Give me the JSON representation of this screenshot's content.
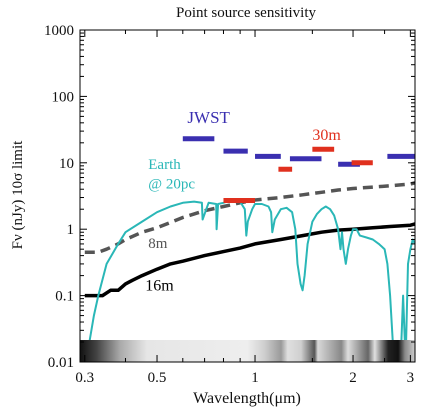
{
  "chart_data": {
    "type": "line",
    "title": "Point source sensitivity",
    "xlabel": "Wavelength(μm)",
    "ylabel": "Fν (nJy) 10σ limit",
    "xscale": "log",
    "yscale": "log",
    "xlim": [
      0.29,
      3.1
    ],
    "ylim": [
      0.01,
      1000
    ],
    "xticks": [
      0.3,
      0.5,
      1,
      2,
      3
    ],
    "xtick_labels": [
      "0.3",
      "0.5",
      "1",
      "2",
      "3"
    ],
    "yticks": [
      0.01,
      0.1,
      1,
      10,
      100,
      1000
    ],
    "ytick_labels": [
      "0.01",
      "0.1",
      "1",
      "10",
      "100",
      "1000"
    ],
    "grid": false,
    "bottom_band": "atmospheric transmission strip (grayscale)",
    "series": [
      {
        "name": "16m",
        "style": "solid",
        "color": "#000000",
        "x": [
          0.3,
          0.34,
          0.36,
          0.38,
          0.4,
          0.42,
          0.45,
          0.5,
          0.55,
          0.6,
          0.7,
          0.8,
          0.9,
          1.0,
          1.2,
          1.4,
          1.6,
          1.8,
          2.0,
          2.3,
          2.6,
          3.0,
          3.1
        ],
        "y": [
          0.1,
          0.1,
          0.12,
          0.12,
          0.15,
          0.17,
          0.2,
          0.25,
          0.3,
          0.33,
          0.4,
          0.46,
          0.52,
          0.6,
          0.7,
          0.8,
          0.9,
          0.97,
          1.0,
          1.05,
          1.1,
          1.15,
          1.2
        ]
      },
      {
        "name": "8m",
        "style": "dashed",
        "color": "#555555",
        "x": [
          0.3,
          0.33,
          0.35,
          0.38,
          0.4,
          0.45,
          0.5,
          0.6,
          0.7,
          0.8,
          0.9,
          1.0,
          1.2,
          1.4,
          1.6,
          1.8,
          2.0,
          2.3,
          2.6,
          3.0,
          3.1
        ],
        "y": [
          0.45,
          0.45,
          0.5,
          0.6,
          0.7,
          0.9,
          1.05,
          1.5,
          1.9,
          2.2,
          2.5,
          2.75,
          3.0,
          3.3,
          3.6,
          3.9,
          4.1,
          4.3,
          4.5,
          4.8,
          5.0
        ]
      },
      {
        "name": "Earth @ 20pc",
        "style": "solid",
        "color": "#2ab7b7",
        "x": [
          0.3,
          0.31,
          0.32,
          0.33,
          0.35,
          0.38,
          0.4,
          0.45,
          0.5,
          0.55,
          0.6,
          0.65,
          0.687,
          0.69,
          0.72,
          0.76,
          0.762,
          0.77,
          0.8,
          0.82,
          0.85,
          0.9,
          0.93,
          0.94,
          0.95,
          0.98,
          1.0,
          1.05,
          1.1,
          1.12,
          1.13,
          1.15,
          1.2,
          1.25,
          1.3,
          1.33,
          1.35,
          1.38,
          1.4,
          1.42,
          1.45,
          1.5,
          1.55,
          1.6,
          1.65,
          1.7,
          1.75,
          1.8,
          1.83,
          1.85,
          1.87,
          1.9,
          1.93,
          1.97,
          2.0,
          2.05,
          2.1,
          2.2,
          2.3,
          2.4,
          2.5,
          2.55,
          2.6,
          2.65,
          2.7,
          2.75,
          2.8,
          2.85,
          2.9,
          2.95,
          3.0,
          3.05,
          3.1
        ],
        "y": [
          0.01,
          0.02,
          0.05,
          0.1,
          0.3,
          0.6,
          0.9,
          1.3,
          1.8,
          2.2,
          2.5,
          2.6,
          2.5,
          1.4,
          2.5,
          2.4,
          1.0,
          2.4,
          2.5,
          2.6,
          2.7,
          2.6,
          2.0,
          0.8,
          1.3,
          2.0,
          2.4,
          2.4,
          2.2,
          1.8,
          0.9,
          1.4,
          2.0,
          2.1,
          1.8,
          1.0,
          0.3,
          0.15,
          0.12,
          0.2,
          0.6,
          1.3,
          1.7,
          2.0,
          2.2,
          2.0,
          1.6,
          1.0,
          0.5,
          0.9,
          0.5,
          0.3,
          0.5,
          0.8,
          1.0,
          1.0,
          0.8,
          0.75,
          0.7,
          0.6,
          0.5,
          0.3,
          0.1,
          0.02,
          0.01,
          0.01,
          0.01,
          0.1,
          0.01,
          0.3,
          0.5,
          0.7,
          0.6
        ]
      }
    ],
    "instrument_bands": [
      {
        "name": "JWST",
        "color": "#3a2fb0",
        "segments": [
          {
            "x0": 0.6,
            "x1": 0.75,
            "y": 23
          },
          {
            "x0": 0.8,
            "x1": 0.95,
            "y": 15
          },
          {
            "x0": 1.0,
            "x1": 1.2,
            "y": 12.5
          },
          {
            "x0": 1.28,
            "x1": 1.6,
            "y": 11.5
          },
          {
            "x0": 1.8,
            "x1": 2.1,
            "y": 9.5
          },
          {
            "x0": 2.55,
            "x1": 3.1,
            "y": 12.5
          }
        ]
      },
      {
        "name": "30m",
        "color": "#e0301e",
        "segments": [
          {
            "x0": 0.8,
            "x1": 1.0,
            "y": 2.7
          },
          {
            "x0": 1.18,
            "x1": 1.3,
            "y": 8
          },
          {
            "x0": 1.5,
            "x1": 1.75,
            "y": 16
          },
          {
            "x0": 1.98,
            "x1": 2.3,
            "y": 10
          }
        ]
      }
    ],
    "annotations": [
      {
        "text": "JWST",
        "color": "#3a2fb0"
      },
      {
        "text": "30m",
        "color": "#e0301e"
      },
      {
        "text": "Earth",
        "color": "#2ab7b7"
      },
      {
        "text": "@ 20pc",
        "color": "#2ab7b7"
      },
      {
        "text": "8m",
        "color": "#555555"
      },
      {
        "text": "16m",
        "color": "#000000"
      }
    ]
  }
}
